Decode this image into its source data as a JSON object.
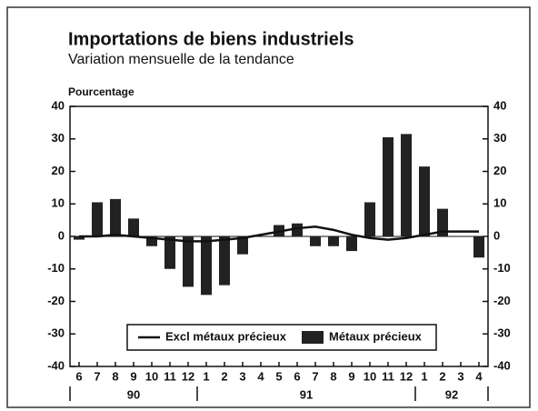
{
  "chart_data": {
    "type": "bar",
    "title": "Importations de biens industriels",
    "subtitle": "Variation mensuelle de la tendance",
    "y_label": "Pourcentage",
    "categories": [
      "6",
      "7",
      "8",
      "9",
      "10",
      "11",
      "12",
      "1",
      "2",
      "3",
      "4",
      "5",
      "6",
      "7",
      "8",
      "9",
      "10",
      "11",
      "12",
      "1",
      "2",
      "3",
      "4"
    ],
    "years": [
      "90",
      "91",
      "92"
    ],
    "series": [
      {
        "name": "Excl métaux précieux",
        "type": "line",
        "color": "#111111",
        "values": [
          0,
          0,
          0.5,
          0,
          -0.5,
          -1,
          -1.5,
          -1.5,
          -1,
          -0.5,
          0.5,
          1.5,
          2.5,
          3,
          2,
          0.5,
          -0.5,
          -1,
          -0.5,
          0.5,
          1.5,
          1.5,
          1.5
        ]
      },
      {
        "name": "Métaux précieux",
        "type": "bar",
        "color": "#222222",
        "values": [
          -1,
          10.5,
          11.5,
          5.5,
          -3,
          -10,
          -15.5,
          -18,
          -15,
          -5.5,
          0,
          3.5,
          4,
          -3,
          -3,
          -4.5,
          10.5,
          30.5,
          31.5,
          21.5,
          8.5,
          0,
          -6.5
        ]
      }
    ],
    "ylim": [
      -40,
      40
    ],
    "yticks": [
      -40,
      -30,
      -20,
      -10,
      0,
      10,
      20,
      30,
      40
    ],
    "y2lim": [
      -40,
      40
    ],
    "y2ticks": [
      -40,
      -30,
      -20,
      -10,
      0,
      10,
      20,
      30,
      40
    ],
    "legend": "bottom"
  }
}
